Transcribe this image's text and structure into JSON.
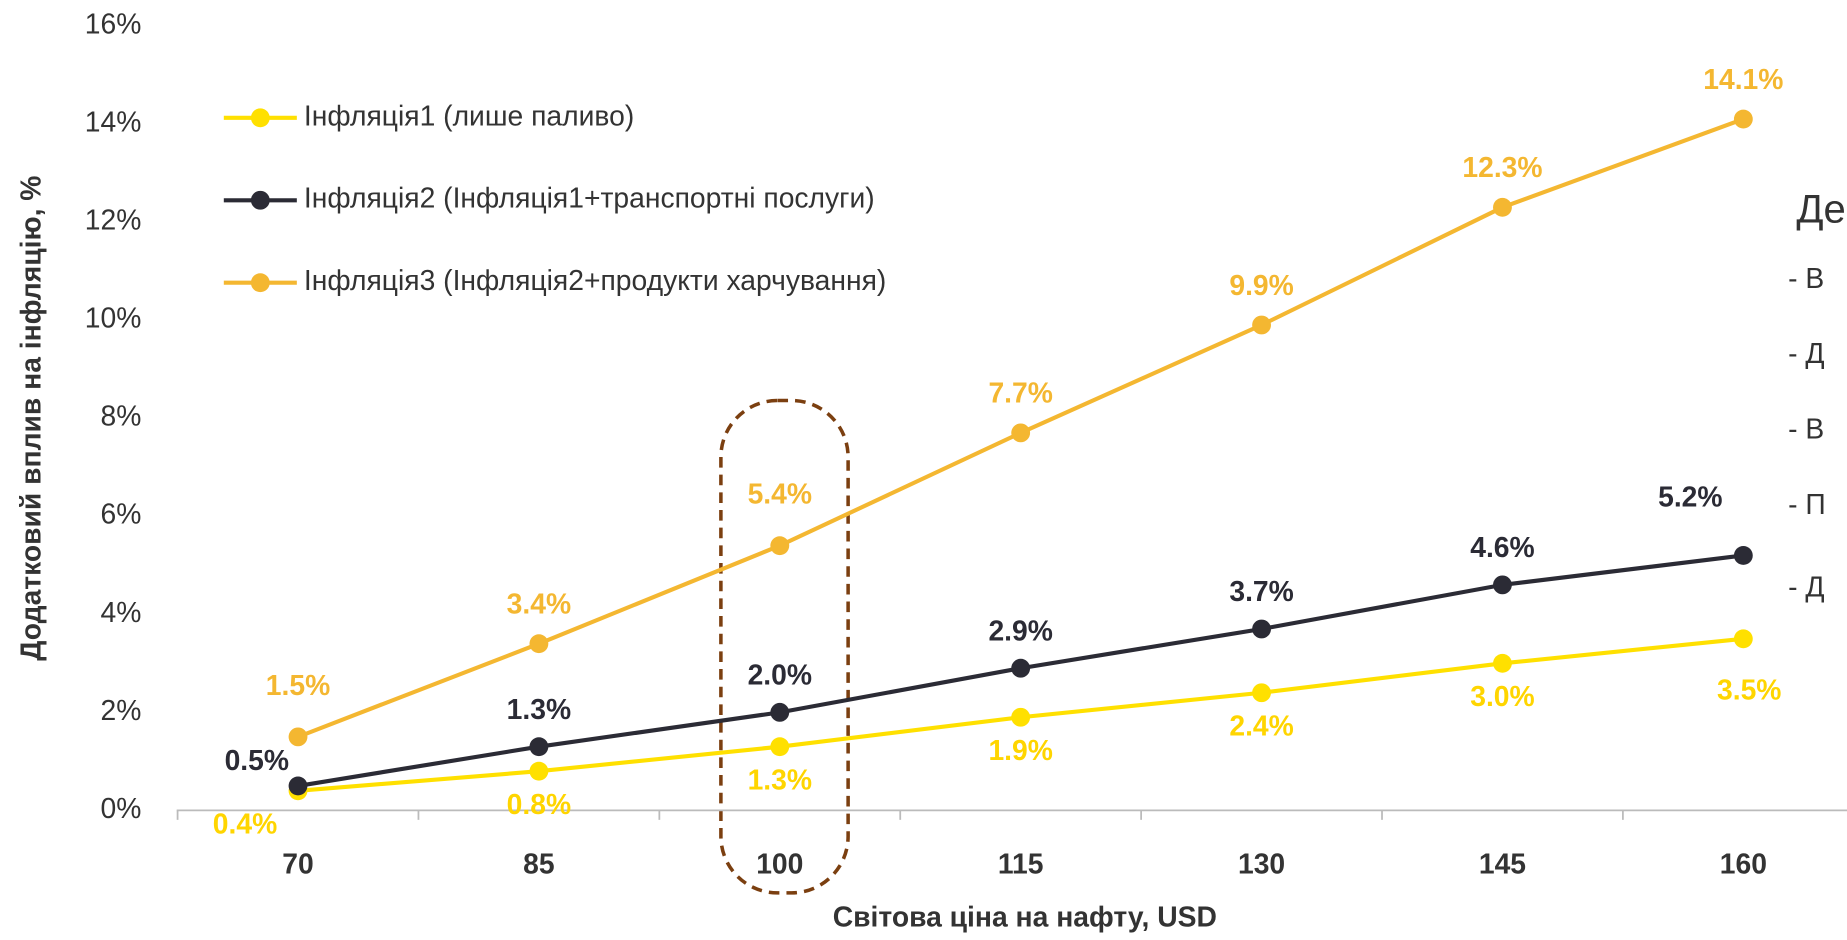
{
  "chart_data": {
    "type": "line",
    "x_label": "Світова ціна на нафту, USD",
    "y_label": "Додатковий вплив на інфляцію, %",
    "categories": [
      "70",
      "85",
      "100",
      "115",
      "130",
      "145",
      "160"
    ],
    "series": [
      {
        "name": "Інфляція1 (лише паливо)",
        "color": "#FFE000",
        "values": [
          0.4,
          0.8,
          1.3,
          1.9,
          2.4,
          3.0,
          3.5
        ],
        "value_labels": [
          "0.4%",
          "0.8%",
          "1.3%",
          "1.9%",
          "2.4%",
          "3.0%",
          "3.5%"
        ]
      },
      {
        "name": "Інфляція2 (Інфляція1+транспортні послуги)",
        "color": "#2B2B35",
        "values": [
          0.5,
          1.3,
          2.0,
          2.9,
          3.7,
          4.6,
          5.2
        ],
        "value_labels": [
          "0.5%",
          "1.3%",
          "2.0%",
          "2.9%",
          "3.7%",
          "4.6%",
          "5.2%"
        ]
      },
      {
        "name": "Інфляція3 (Інфляція2+продукти харчування)",
        "color": "#F4B731",
        "values": [
          1.5,
          3.4,
          5.4,
          7.7,
          9.9,
          12.3,
          14.1
        ],
        "value_labels": [
          "1.5%",
          "3.4%",
          "5.4%",
          "7.7%",
          "9.9%",
          "12.3%",
          "14.1%"
        ]
      }
    ],
    "ylim": [
      0,
      16
    ],
    "yticks": [
      {
        "value": 0,
        "label": "0%"
      },
      {
        "value": 2,
        "label": "2%"
      },
      {
        "value": 4,
        "label": "4%"
      },
      {
        "value": 6,
        "label": "6%"
      },
      {
        "value": 8,
        "label": "8%"
      },
      {
        "value": 10,
        "label": "10%"
      },
      {
        "value": 12,
        "label": "12%"
      },
      {
        "value": 14,
        "label": "14%"
      },
      {
        "value": 16,
        "label": "16%"
      }
    ],
    "legend": "upper left",
    "side_text": [
      "Де",
      "- В",
      "- Д",
      "- В",
      "- П",
      "- Д"
    ]
  }
}
